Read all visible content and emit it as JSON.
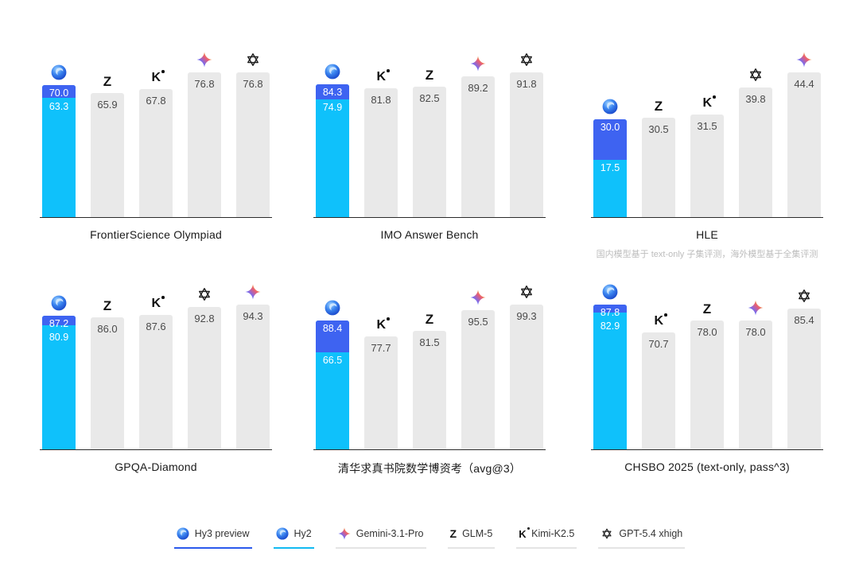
{
  "colors": {
    "hy3_segment": "#3E63F1",
    "hy2_segment": "#0FC1FB",
    "bar_gray": "#E9E9E9",
    "bar_value_text": "#4A4A4A",
    "bar_value_text_on_color": "#FFFFFF",
    "axis_line": "#2B2B2B",
    "title_text": "#1A1A1A",
    "footnote_text": "#BDBDBD",
    "legend_text": "#333333",
    "underline_hy3": "#2B5AEC",
    "underline_hy2": "#12BAF2",
    "underline_other": "#E4E4E4"
  },
  "chart_data": [
    {
      "type": "bar",
      "title": "FrontierScience Olympiad",
      "ylim": [
        0,
        76.8
      ],
      "bars": [
        {
          "model": "Hy3 preview / Hy2",
          "icon": "hunyuan-icon",
          "stacked": true,
          "hy3": 70.0,
          "hy3_label": "70.0",
          "hy2": 63.3,
          "hy2_label": "63.3"
        },
        {
          "model": "GLM-5",
          "icon": "glm-z-icon",
          "value": 65.9,
          "label": "65.9"
        },
        {
          "model": "Kimi-K2.5",
          "icon": "kimi-k-icon",
          "value": 67.8,
          "label": "67.8"
        },
        {
          "model": "Gemini-3.1-Pro",
          "icon": "gemini-star-icon",
          "value": 76.8,
          "label": "76.8"
        },
        {
          "model": "GPT-5.4 xhigh",
          "icon": "openai-icon",
          "value": 76.8,
          "label": "76.8"
        }
      ]
    },
    {
      "type": "bar",
      "title": "IMO Answer Bench",
      "ylim": [
        0,
        91.8
      ],
      "bars": [
        {
          "model": "Hy3 preview / Hy2",
          "icon": "hunyuan-icon",
          "stacked": true,
          "hy3": 84.3,
          "hy3_label": "84.3",
          "hy2": 74.9,
          "hy2_label": "74.9"
        },
        {
          "model": "Kimi-K2.5",
          "icon": "kimi-k-icon",
          "value": 81.8,
          "label": "81.8"
        },
        {
          "model": "GLM-5",
          "icon": "glm-z-icon",
          "value": 82.5,
          "label": "82.5"
        },
        {
          "model": "Gemini-3.1-Pro",
          "icon": "gemini-star-icon",
          "value": 89.2,
          "label": "89.2"
        },
        {
          "model": "GPT-5.4 xhigh",
          "icon": "openai-icon",
          "value": 91.8,
          "label": "91.8"
        }
      ]
    },
    {
      "type": "bar",
      "title": "HLE",
      "footnote": "国内模型基于 text-only 子集评测，海外模型基于全集评测",
      "ylim": [
        0,
        44.4
      ],
      "bars": [
        {
          "model": "Hy3 preview / Hy2",
          "icon": "hunyuan-icon",
          "stacked": true,
          "hy3": 30.0,
          "hy3_label": "30.0",
          "hy2": 17.5,
          "hy2_label": "17.5"
        },
        {
          "model": "GLM-5",
          "icon": "glm-z-icon",
          "value": 30.5,
          "label": "30.5"
        },
        {
          "model": "Kimi-K2.5",
          "icon": "kimi-k-icon",
          "value": 31.5,
          "label": "31.5"
        },
        {
          "model": "GPT-5.4 xhigh",
          "icon": "openai-icon",
          "value": 39.8,
          "label": "39.8"
        },
        {
          "model": "Gemini-3.1-Pro",
          "icon": "gemini-star-icon",
          "value": 44.4,
          "label": "44.4"
        }
      ]
    },
    {
      "type": "bar",
      "title": "GPQA-Diamond",
      "ylim": [
        0,
        94.3
      ],
      "bars": [
        {
          "model": "Hy3 preview / Hy2",
          "icon": "hunyuan-icon",
          "stacked": true,
          "hy3": 87.2,
          "hy3_label": "87.2",
          "hy2": 80.9,
          "hy2_label": "80.9"
        },
        {
          "model": "GLM-5",
          "icon": "glm-z-icon",
          "value": 86.0,
          "label": "86.0"
        },
        {
          "model": "Kimi-K2.5",
          "icon": "kimi-k-icon",
          "value": 87.6,
          "label": "87.6"
        },
        {
          "model": "GPT-5.4 xhigh",
          "icon": "openai-icon",
          "value": 92.8,
          "label": "92.8"
        },
        {
          "model": "Gemini-3.1-Pro",
          "icon": "gemini-star-icon",
          "value": 94.3,
          "label": "94.3"
        }
      ]
    },
    {
      "type": "bar",
      "title": "清华求真书院数学博资考（avg@3）",
      "ylim": [
        0,
        99.3
      ],
      "bars": [
        {
          "model": "Hy3 preview / Hy2",
          "icon": "hunyuan-icon",
          "stacked": true,
          "hy3": 88.4,
          "hy3_label": "88.4",
          "hy2": 66.5,
          "hy2_label": "66.5"
        },
        {
          "model": "Kimi-K2.5",
          "icon": "kimi-k-icon",
          "value": 77.7,
          "label": "77.7"
        },
        {
          "model": "GLM-5",
          "icon": "glm-z-icon",
          "value": 81.5,
          "label": "81.5"
        },
        {
          "model": "Gemini-3.1-Pro",
          "icon": "gemini-star-icon",
          "value": 95.5,
          "label": "95.5"
        },
        {
          "model": "GPT-5.4 xhigh",
          "icon": "openai-icon",
          "value": 99.3,
          "label": "99.3"
        }
      ]
    },
    {
      "type": "bar",
      "title": "CHSBO 2025 (text-only, pass^3)",
      "ylim": [
        0,
        87.8
      ],
      "bars": [
        {
          "model": "Hy3 preview / Hy2",
          "icon": "hunyuan-icon",
          "stacked": true,
          "hy3": 87.8,
          "hy3_label": "87.8",
          "hy2": 82.9,
          "hy2_label": "82.9"
        },
        {
          "model": "Kimi-K2.5",
          "icon": "kimi-k-icon",
          "value": 70.7,
          "label": "70.7"
        },
        {
          "model": "GLM-5",
          "icon": "glm-z-icon",
          "value": 78.0,
          "label": "78.0"
        },
        {
          "model": "Gemini-3.1-Pro",
          "icon": "gemini-star-icon",
          "value": 78.0,
          "label": "78.0"
        },
        {
          "model": "GPT-5.4 xhigh",
          "icon": "openai-icon",
          "value": 85.4,
          "label": "85.4"
        }
      ]
    }
  ],
  "legend": {
    "items": [
      {
        "label": "Hy3 preview",
        "icon": "hunyuan-icon",
        "underline": "#2B5AEC"
      },
      {
        "label": "Hy2",
        "icon": "hunyuan-icon",
        "underline": "#12BAF2"
      },
      {
        "label": "Gemini-3.1-Pro",
        "icon": "gemini-star-icon",
        "underline": "#E4E4E4"
      },
      {
        "label": "GLM-5",
        "icon": "glm-z-icon",
        "underline": "#E4E4E4"
      },
      {
        "label": "Kimi-K2.5",
        "icon": "kimi-k-icon",
        "underline": "#E4E4E4"
      },
      {
        "label": "GPT-5.4 xhigh",
        "icon": "openai-icon",
        "underline": "#E4E4E4"
      }
    ]
  }
}
